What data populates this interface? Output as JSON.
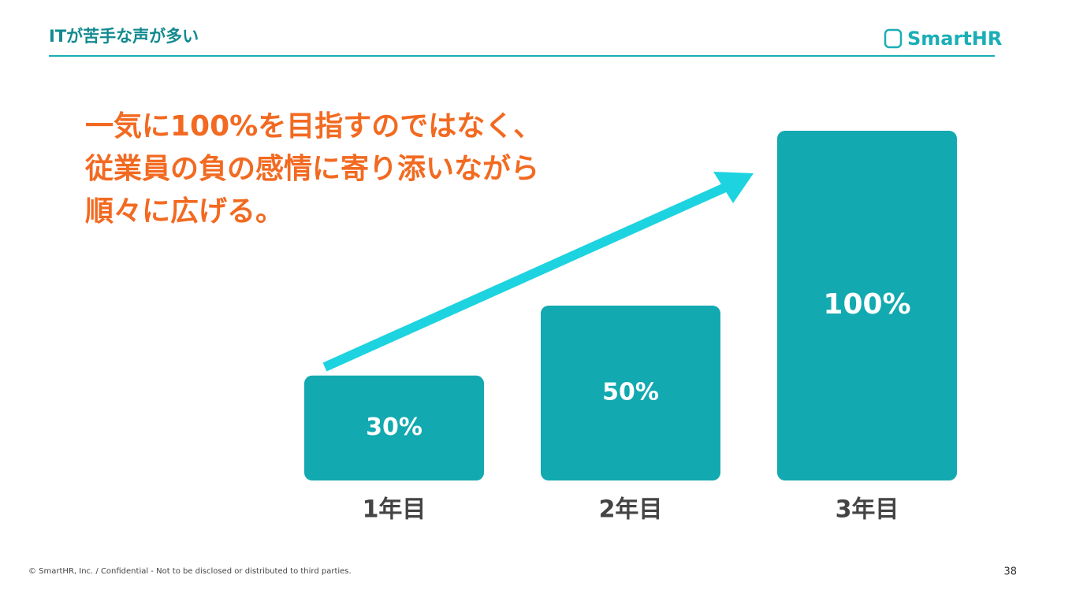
{
  "header": {
    "title": "ITが苦手な声が多い",
    "logo": "SmartHR"
  },
  "chart_data": {
    "type": "bar",
    "annotations": [
      "一気に100%を目指すのではなく、",
      "従業員の負の感情に寄り添いながら",
      "順々に広げる。"
    ],
    "categories": [
      "1年目",
      "2年目",
      "3年目"
    ],
    "values": [
      30,
      50,
      100
    ],
    "value_labels": [
      "30%",
      "50%",
      "100%"
    ],
    "color": "#12a9b0",
    "ylim": [
      0,
      100
    ]
  },
  "footer": {
    "copyright": "© SmartHR, Inc. / Confidential - Not to be disclosed or distributed to third parties.",
    "page_number": "38"
  }
}
